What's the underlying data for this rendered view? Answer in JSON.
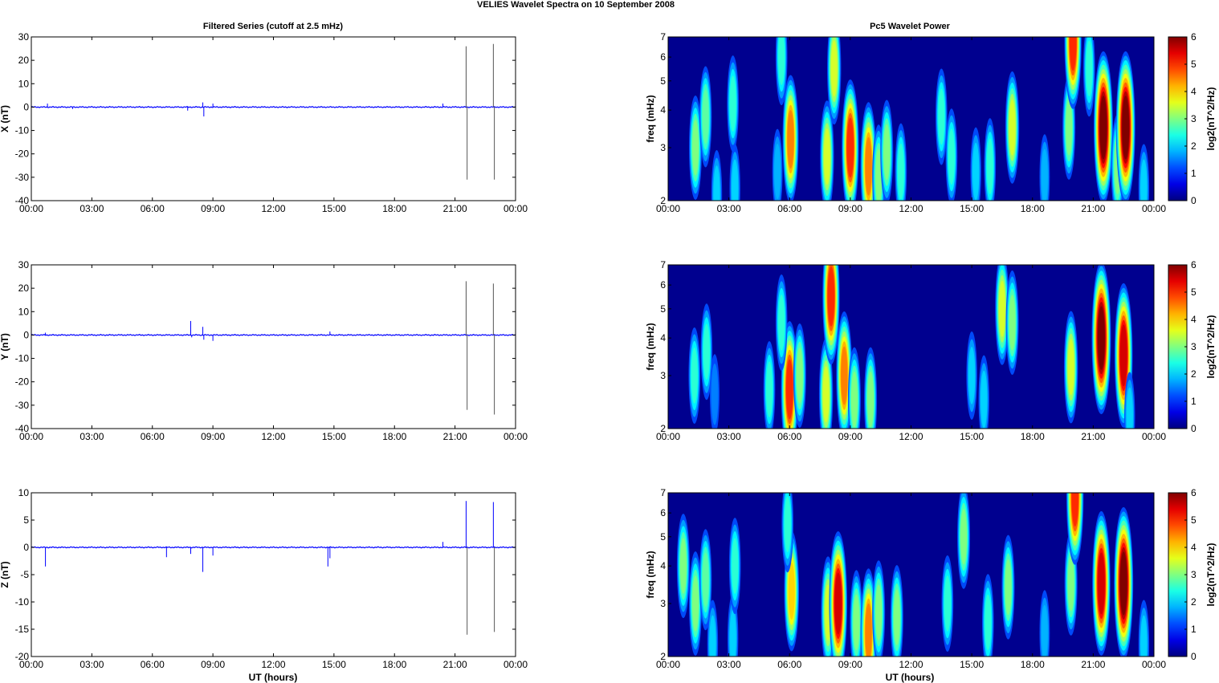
{
  "figure": {
    "title": "VELIES Wavelet Spectra on 10 September 2008",
    "left_title": "Filtered Series (cutoff at 2.5 mHz)",
    "right_title": "Pc5 Wavelet Power",
    "xlabel": "UT (hours)",
    "time_ticks": [
      "00:00",
      "03:00",
      "06:00",
      "09:00",
      "12:00",
      "15:00",
      "18:00",
      "21:00",
      "00:00"
    ]
  },
  "colors": {
    "series_line": "#0000ff",
    "spectrogram_background": "#00008f",
    "colormap": "jet"
  },
  "chart_data": [
    {
      "type": "line",
      "component": "X",
      "ylabel": "X (nT)",
      "xlim": [
        0,
        24
      ],
      "ylim": [
        -40,
        30
      ],
      "yticks": [
        30,
        20,
        10,
        0,
        -10,
        -20,
        -30,
        -40
      ],
      "spikes": [
        {
          "t": 0.8,
          "v": 1.5
        },
        {
          "t": 2.05,
          "v": -0.8
        },
        {
          "t": 7.75,
          "v": -1.5
        },
        {
          "t": 8.5,
          "v": 2.0
        },
        {
          "t": 8.55,
          "v": -4.0
        },
        {
          "t": 9.0,
          "v": 1.5
        },
        {
          "t": 20.4,
          "v": 1.5
        },
        {
          "t": 21.55,
          "v": 26.0
        },
        {
          "t": 21.6,
          "v": -31.0
        },
        {
          "t": 22.9,
          "v": 27.0
        },
        {
          "t": 22.95,
          "v": -31.0
        }
      ]
    },
    {
      "type": "line",
      "component": "Y",
      "ylabel": "Y (nT)",
      "xlim": [
        0,
        24
      ],
      "ylim": [
        -40,
        30
      ],
      "yticks": [
        30,
        20,
        10,
        0,
        -10,
        -20,
        -30,
        -40
      ],
      "spikes": [
        {
          "t": 0.7,
          "v": 1.0
        },
        {
          "t": 7.9,
          "v": 6.0
        },
        {
          "t": 7.95,
          "v": -1.0
        },
        {
          "t": 8.5,
          "v": 3.5
        },
        {
          "t": 8.55,
          "v": -2.0
        },
        {
          "t": 9.0,
          "v": -2.5
        },
        {
          "t": 14.8,
          "v": 1.5
        },
        {
          "t": 21.55,
          "v": 23.0
        },
        {
          "t": 21.6,
          "v": -32.0
        },
        {
          "t": 22.9,
          "v": 22.0
        },
        {
          "t": 22.95,
          "v": -34.0
        }
      ]
    },
    {
      "type": "line",
      "component": "Z",
      "ylabel": "Z (nT)",
      "xlim": [
        0,
        24
      ],
      "ylim": [
        -20,
        10
      ],
      "yticks": [
        10,
        5,
        0,
        -5,
        -10,
        -15,
        -20
      ],
      "spikes": [
        {
          "t": 0.7,
          "v": -3.5
        },
        {
          "t": 6.7,
          "v": -1.8
        },
        {
          "t": 7.9,
          "v": -1.2
        },
        {
          "t": 8.5,
          "v": -4.5
        },
        {
          "t": 9.0,
          "v": -1.5
        },
        {
          "t": 14.7,
          "v": -3.5
        },
        {
          "t": 14.8,
          "v": -2.0
        },
        {
          "t": 20.4,
          "v": 1.0
        },
        {
          "t": 21.55,
          "v": 8.5
        },
        {
          "t": 21.6,
          "v": -16.0
        },
        {
          "t": 22.9,
          "v": 8.3
        },
        {
          "t": 22.95,
          "v": -15.5
        }
      ]
    },
    {
      "type": "heatmap",
      "component": "X",
      "ylabel": "freq (mHz)",
      "yscale": "log",
      "xlim": [
        0,
        24
      ],
      "ylim": [
        2,
        7
      ],
      "yticks": [
        2,
        3,
        4,
        5,
        6,
        7
      ],
      "colorbar": {
        "label": "log2(nT^2/Hz)",
        "range": [
          0,
          6
        ],
        "ticks": [
          6,
          5,
          4,
          3,
          2,
          1,
          0
        ]
      },
      "features": [
        {
          "t": 1.35,
          "f": 3.0,
          "p": 3.0
        },
        {
          "t": 1.85,
          "f": 3.8,
          "p": 2.8
        },
        {
          "t": 2.4,
          "f": 2.1,
          "p": 2.0
        },
        {
          "t": 3.3,
          "f": 2.2,
          "p": 2.0
        },
        {
          "t": 3.2,
          "f": 4.2,
          "p": 2.5
        },
        {
          "t": 5.4,
          "f": 2.5,
          "p": 1.8
        },
        {
          "t": 6.05,
          "f": 3.2,
          "p": 4.5
        },
        {
          "t": 5.6,
          "f": 6.0,
          "p": 2.5
        },
        {
          "t": 7.85,
          "f": 2.8,
          "p": 3.5
        },
        {
          "t": 8.2,
          "f": 5.5,
          "p": 3.5
        },
        {
          "t": 9.0,
          "f": 3.0,
          "p": 5.0
        },
        {
          "t": 9.9,
          "f": 2.6,
          "p": 4.5
        },
        {
          "t": 10.4,
          "f": 2.4,
          "p": 3.0
        },
        {
          "t": 10.8,
          "f": 2.9,
          "p": 3.0
        },
        {
          "t": 11.5,
          "f": 2.5,
          "p": 2.5
        },
        {
          "t": 13.5,
          "f": 3.8,
          "p": 2.5
        },
        {
          "t": 14.0,
          "f": 2.8,
          "p": 2.5
        },
        {
          "t": 15.2,
          "f": 2.5,
          "p": 2.0
        },
        {
          "t": 15.9,
          "f": 2.6,
          "p": 2.5
        },
        {
          "t": 17.0,
          "f": 3.5,
          "p": 3.5
        },
        {
          "t": 18.6,
          "f": 2.4,
          "p": 1.8
        },
        {
          "t": 19.8,
          "f": 3.5,
          "p": 3.0
        },
        {
          "t": 20.0,
          "f": 6.8,
          "p": 5.0
        },
        {
          "t": 20.8,
          "f": 5.5,
          "p": 2.5
        },
        {
          "t": 21.5,
          "f": 3.5,
          "p": 6.0
        },
        {
          "t": 22.2,
          "f": 2.6,
          "p": 3.0
        },
        {
          "t": 22.6,
          "f": 3.5,
          "p": 6.0
        },
        {
          "t": 23.5,
          "f": 2.2,
          "p": 2.0
        }
      ]
    },
    {
      "type": "heatmap",
      "component": "Y",
      "ylabel": "freq (mHz)",
      "yscale": "log",
      "xlim": [
        0,
        24
      ],
      "ylim": [
        2,
        7
      ],
      "yticks": [
        2,
        3,
        4,
        5,
        6,
        7
      ],
      "colorbar": {
        "label": "log2(nT^2/Hz)",
        "range": [
          0,
          6
        ],
        "ticks": [
          6,
          5,
          4,
          3,
          2,
          1,
          0
        ]
      },
      "features": [
        {
          "t": 1.3,
          "f": 3.0,
          "p": 2.5
        },
        {
          "t": 1.9,
          "f": 3.6,
          "p": 2.5
        },
        {
          "t": 2.3,
          "f": 2.6,
          "p": 1.5
        },
        {
          "t": 5.0,
          "f": 2.7,
          "p": 2.5
        },
        {
          "t": 6.0,
          "f": 2.7,
          "p": 5.0
        },
        {
          "t": 5.6,
          "f": 4.5,
          "p": 2.5
        },
        {
          "t": 6.5,
          "f": 3.0,
          "p": 3.0
        },
        {
          "t": 7.8,
          "f": 2.6,
          "p": 3.5
        },
        {
          "t": 8.05,
          "f": 5.5,
          "p": 5.0
        },
        {
          "t": 8.7,
          "f": 3.0,
          "p": 4.5
        },
        {
          "t": 9.2,
          "f": 2.5,
          "p": 3.0
        },
        {
          "t": 10.0,
          "f": 2.5,
          "p": 3.0
        },
        {
          "t": 15.0,
          "f": 3.0,
          "p": 2.0
        },
        {
          "t": 15.6,
          "f": 2.5,
          "p": 2.0
        },
        {
          "t": 16.5,
          "f": 5.0,
          "p": 3.5
        },
        {
          "t": 17.0,
          "f": 4.5,
          "p": 3.0
        },
        {
          "t": 19.9,
          "f": 3.2,
          "p": 3.5
        },
        {
          "t": 21.4,
          "f": 4.0,
          "p": 6.0
        },
        {
          "t": 22.5,
          "f": 3.5,
          "p": 5.5
        },
        {
          "t": 22.8,
          "f": 2.2,
          "p": 2.0
        }
      ]
    },
    {
      "type": "heatmap",
      "component": "Z",
      "ylabel": "freq (mHz)",
      "yscale": "log",
      "xlim": [
        0,
        24
      ],
      "ylim": [
        2,
        7
      ],
      "yticks": [
        2,
        3,
        4,
        5,
        6,
        7
      ],
      "colorbar": {
        "label": "log2(nT^2/Hz)",
        "range": [
          0,
          6
        ],
        "ticks": [
          6,
          5,
          4,
          3,
          2,
          1,
          0
        ]
      },
      "features": [
        {
          "t": 0.75,
          "f": 4.0,
          "p": 3.0
        },
        {
          "t": 1.35,
          "f": 3.0,
          "p": 3.0
        },
        {
          "t": 1.85,
          "f": 3.6,
          "p": 2.8
        },
        {
          "t": 2.2,
          "f": 2.2,
          "p": 2.0
        },
        {
          "t": 3.2,
          "f": 2.3,
          "p": 2.0
        },
        {
          "t": 3.3,
          "f": 4.0,
          "p": 2.5
        },
        {
          "t": 6.1,
          "f": 3.3,
          "p": 4.0
        },
        {
          "t": 5.9,
          "f": 5.5,
          "p": 2.5
        },
        {
          "t": 7.9,
          "f": 2.8,
          "p": 3.5
        },
        {
          "t": 8.4,
          "f": 3.0,
          "p": 5.5
        },
        {
          "t": 9.3,
          "f": 2.6,
          "p": 3.0
        },
        {
          "t": 9.9,
          "f": 2.4,
          "p": 4.5
        },
        {
          "t": 10.4,
          "f": 2.8,
          "p": 3.0
        },
        {
          "t": 11.3,
          "f": 2.7,
          "p": 3.0
        },
        {
          "t": 13.8,
          "f": 3.0,
          "p": 2.5
        },
        {
          "t": 14.6,
          "f": 5.0,
          "p": 3.0
        },
        {
          "t": 15.8,
          "f": 2.6,
          "p": 2.5
        },
        {
          "t": 16.8,
          "f": 3.4,
          "p": 3.0
        },
        {
          "t": 18.6,
          "f": 2.4,
          "p": 1.8
        },
        {
          "t": 19.9,
          "f": 3.5,
          "p": 3.0
        },
        {
          "t": 20.1,
          "f": 6.8,
          "p": 5.0
        },
        {
          "t": 21.4,
          "f": 3.5,
          "p": 5.5
        },
        {
          "t": 22.5,
          "f": 3.5,
          "p": 6.0
        },
        {
          "t": 23.5,
          "f": 2.2,
          "p": 2.0
        }
      ]
    }
  ]
}
